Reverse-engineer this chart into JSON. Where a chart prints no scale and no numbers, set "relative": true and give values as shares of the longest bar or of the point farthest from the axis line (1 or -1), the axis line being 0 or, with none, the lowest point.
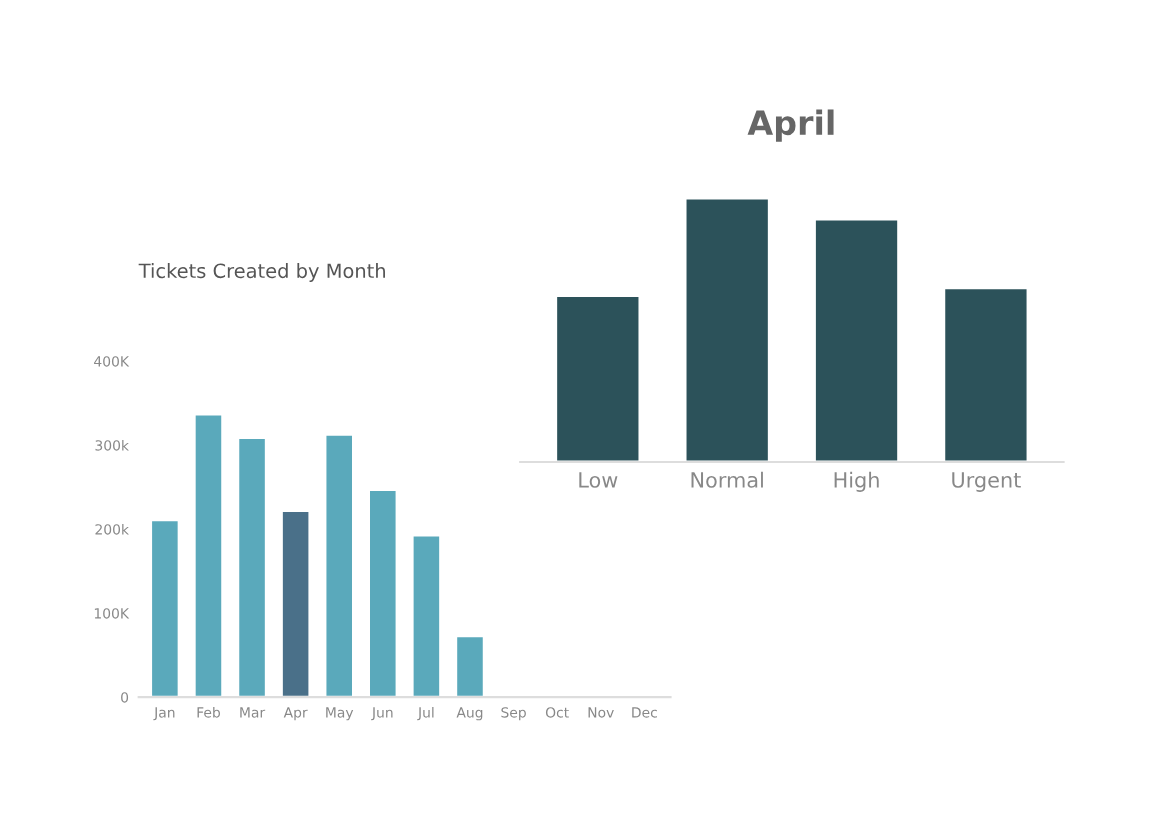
{
  "chart_data": [
    {
      "type": "bar",
      "title": "Tickets Created by Month",
      "categories": [
        "Jan",
        "Feb",
        "Mar",
        "Apr",
        "May",
        "Jun",
        "Jul",
        "Aug",
        "Sep",
        "Oct",
        "Nov",
        "Dec"
      ],
      "values": [
        211,
        337,
        309,
        222,
        313,
        247,
        193,
        73,
        null,
        null,
        null,
        null
      ],
      "colors": [
        "#5aa9bb",
        "#5aa9bb",
        "#5aa9bb",
        "#4a7089",
        "#5aa9bb",
        "#5aa9bb",
        "#5aa9bb",
        "#5aa9bb",
        "#5aa9bb",
        "#5aa9bb",
        "#5aa9bb",
        "#5aa9bb"
      ],
      "ylim": [
        0,
        400
      ],
      "yticks": [
        0,
        {
          "value": 100,
          "label": "100K"
        },
        {
          "value": 200,
          "label": "200k"
        },
        {
          "value": 300,
          "label": "300k"
        },
        {
          "value": 400,
          "label": "400K"
        }
      ]
    },
    {
      "type": "bar",
      "title": "April",
      "categories": [
        "Low",
        "Normal",
        "High",
        "Urgent"
      ],
      "values": [
        0.63,
        1,
        0.92,
        0.66
      ],
      "color": "#2c525a",
      "relative": true
    }
  ]
}
